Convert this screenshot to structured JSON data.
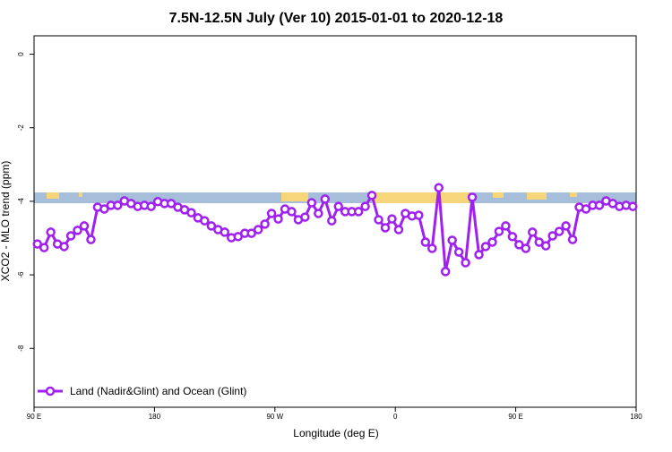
{
  "chart_data": {
    "type": "line",
    "title": "7.5N-12.5N July (Ver 10)   2015-01-01 to 2020-12-18",
    "x_label": "Longitude (deg E)",
    "y_label": "XCO2 - MLO trend (ppm)",
    "xlim": [
      90,
      540
    ],
    "xticks": [
      {
        "value": 90,
        "label": "90 E"
      },
      {
        "value": 180,
        "label": "180"
      },
      {
        "value": 270,
        "label": "90 W"
      },
      {
        "value": 360,
        "label": "0"
      },
      {
        "value": 450,
        "label": "90 E"
      },
      {
        "value": 540,
        "label": "180"
      }
    ],
    "ylim": [
      -9.6,
      0.5
    ],
    "yticks": [
      0,
      -2,
      -4,
      -6,
      -8
    ],
    "legend": "bottom-left",
    "x": [
      92.5,
      97.5,
      102.5,
      107.5,
      112.5,
      117.5,
      122.5,
      127.5,
      132.5,
      137.5,
      142.5,
      147.5,
      152.5,
      157.5,
      162.5,
      167.5,
      172.5,
      177.5,
      182.5,
      187.5,
      192.5,
      197.5,
      202.5,
      207.5,
      212.5,
      217.5,
      222.5,
      227.5,
      232.5,
      237.5,
      242.5,
      247.5,
      252.5,
      257.5,
      262.5,
      267.5,
      272.5,
      277.5,
      282.5,
      287.5,
      292.5,
      297.5,
      302.5,
      307.5,
      312.5,
      317.5,
      322.5,
      327.5,
      332.5,
      337.5,
      342.5,
      347.5,
      352.5,
      357.5,
      362.5,
      367.5,
      372.5,
      377.5,
      382.5,
      387.5,
      392.5,
      397.5,
      402.5,
      407.5,
      412.5,
      417.5,
      422.5,
      427.5,
      432.5,
      437.5,
      442.5,
      447.5,
      452.5,
      457.5,
      462.5,
      467.5,
      472.5,
      477.5,
      482.5,
      487.5,
      492.5,
      497.5,
      502.5,
      507.5,
      512.5,
      517.5,
      522.5,
      527.5,
      532.5,
      537.5
    ],
    "series": [
      {
        "name": "Land (Nadir&Glint) and Ocean (Glint)",
        "color": "#a020f0",
        "values": [
          -5.16,
          -5.26,
          -4.84,
          -5.16,
          -5.23,
          -4.94,
          -4.79,
          -4.67,
          -5.04,
          -4.16,
          -4.21,
          -4.11,
          -4.11,
          -3.99,
          -4.06,
          -4.14,
          -4.11,
          -4.14,
          -4.01,
          -4.06,
          -4.06,
          -4.16,
          -4.23,
          -4.31,
          -4.45,
          -4.53,
          -4.67,
          -4.77,
          -4.84,
          -4.99,
          -4.96,
          -4.87,
          -4.87,
          -4.77,
          -4.62,
          -4.33,
          -4.48,
          -4.21,
          -4.28,
          -4.5,
          -4.43,
          -4.04,
          -4.33,
          -3.94,
          -4.53,
          -4.14,
          -4.28,
          -4.28,
          -4.28,
          -4.14,
          -3.84,
          -4.5,
          -4.72,
          -4.48,
          -4.77,
          -4.33,
          -4.4,
          -4.38,
          -5.11,
          -5.28,
          -3.63,
          -5.91,
          -5.06,
          -5.38,
          -5.67,
          -3.89,
          -5.45,
          -5.23,
          -5.11,
          -4.82,
          -4.67,
          -4.96,
          -5.18,
          -5.28,
          -4.84,
          -5.11,
          -5.21,
          -4.94,
          -4.82,
          -4.67,
          -5.04,
          -4.16,
          -4.21,
          -4.11,
          -4.11,
          -3.99,
          -4.06,
          -4.14,
          -4.11,
          -4.14
        ]
      }
    ]
  }
}
